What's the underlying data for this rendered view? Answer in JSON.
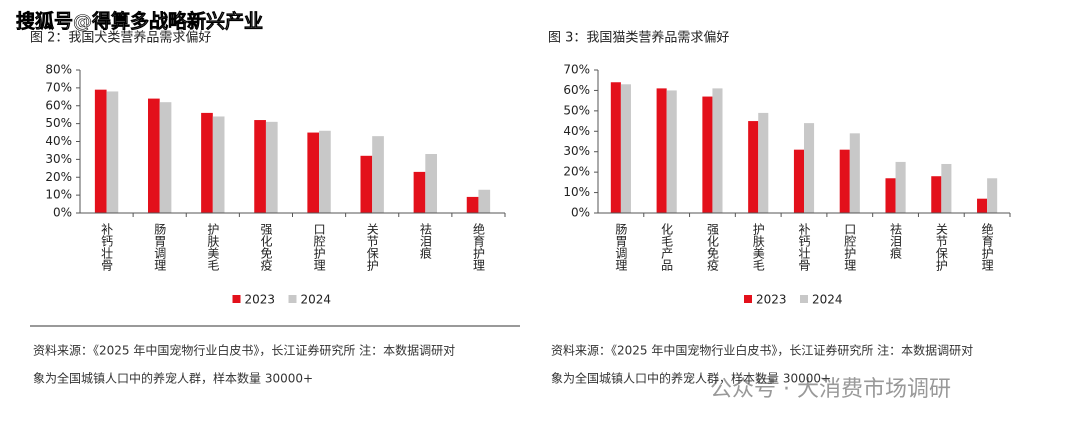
{
  "watermarks": [
    "搜狐号@得算多战略新兴产业",
    "公众号 · 大消费市场调研"
  ],
  "chart_data": [
    {
      "type": "bar",
      "title": "图 2：我国犬类营养品需求偏好",
      "categories": [
        "补钙壮骨",
        "肠胃调理",
        "护肤美毛",
        "强化免疫",
        "口腔护理",
        "关节保护",
        "祛泪痕",
        "绝育护理"
      ],
      "series": [
        {
          "name": "2023",
          "color": "#e3101b",
          "values": [
            69,
            64,
            56,
            52,
            45,
            32,
            23,
            9
          ]
        },
        {
          "name": "2024",
          "color": "#c8c8c8",
          "values": [
            68,
            62,
            54,
            51,
            46,
            43,
            33,
            13
          ]
        }
      ],
      "ylim": [
        0,
        80
      ],
      "yticks": [
        {
          "value": 0,
          "label": "0%"
        },
        {
          "value": 10,
          "label": "10%"
        },
        {
          "value": 20,
          "label": "20%"
        },
        {
          "value": 30,
          "label": "30%"
        },
        {
          "value": 40,
          "label": "40%"
        },
        {
          "value": 50,
          "label": "50%"
        },
        {
          "value": 60,
          "label": "60%"
        },
        {
          "value": 70,
          "label": "70%"
        },
        {
          "value": 80,
          "label": "80%"
        }
      ],
      "source": [
        "资料来源：《2025 年中国宠物行业白皮书》，长江证券研究所  注：本数据调研对",
        "象为全国城镇人口中的养宠人群，样本数量 30000+"
      ]
    },
    {
      "type": "bar",
      "title": "图 3：我国猫类营养品需求偏好",
      "categories": [
        "肠胃调理",
        "化毛产品",
        "强化免疫",
        "护肤美毛",
        "补钙壮骨",
        "口腔护理",
        "祛泪痕",
        "关节保护",
        "绝育护理"
      ],
      "series": [
        {
          "name": "2023",
          "color": "#e3101b",
          "values": [
            64,
            61,
            57,
            45,
            31,
            31,
            17,
            18,
            7
          ]
        },
        {
          "name": "2024",
          "color": "#c8c8c8",
          "values": [
            63,
            60,
            61,
            49,
            44,
            39,
            25,
            24,
            17
          ]
        }
      ],
      "ylim": [
        0,
        70
      ],
      "yticks": [
        {
          "value": 0,
          "label": "0%"
        },
        {
          "value": 10,
          "label": "10%"
        },
        {
          "value": 20,
          "label": "20%"
        },
        {
          "value": 30,
          "label": "30%"
        },
        {
          "value": 40,
          "label": "40%"
        },
        {
          "value": 50,
          "label": "50%"
        },
        {
          "value": 60,
          "label": "60%"
        },
        {
          "value": 70,
          "label": "70%"
        }
      ],
      "source": [
        "资料来源：《2025 年中国宠物行业白皮书》，长江证券研究所  注：本数据调研对",
        "象为全国城镇人口中的养宠人群，样本数量 30000+"
      ]
    }
  ]
}
